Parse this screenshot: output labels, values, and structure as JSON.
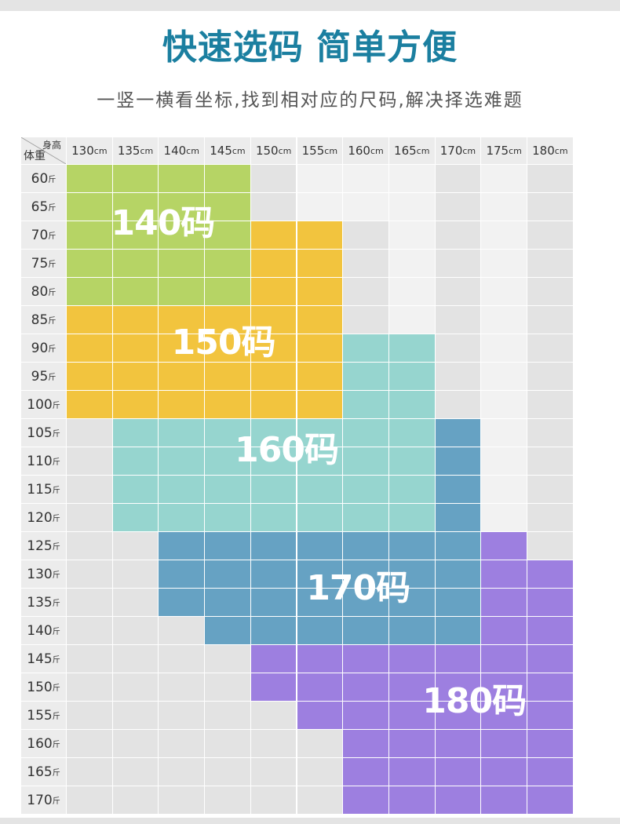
{
  "header": {
    "title": "快速选码 简单方便",
    "subtitle": "一竖一横看坐标,找到相对应的尺码,解决择选难题"
  },
  "chart_data": {
    "type": "table",
    "corner": {
      "height_label": "身高",
      "weight_label": "体重"
    },
    "height_unit": "cm",
    "weight_unit": "斤",
    "heights": [
      "130",
      "135",
      "140",
      "145",
      "150",
      "155",
      "160",
      "165",
      "170",
      "175",
      "180"
    ],
    "weights": [
      "60",
      "65",
      "70",
      "75",
      "80",
      "85",
      "90",
      "95",
      "100",
      "105",
      "110",
      "115",
      "120",
      "125",
      "130",
      "135",
      "140",
      "145",
      "150",
      "155",
      "160",
      "165",
      "170"
    ],
    "sizes": [
      {
        "label": "140码",
        "color": "#b6d465"
      },
      {
        "label": "150码",
        "color": "#f2c43e"
      },
      {
        "label": "160码",
        "color": "#96d5cf"
      },
      {
        "label": "170码",
        "color": "#66a2c3"
      },
      {
        "label": "180码",
        "color": "#9d7fe0"
      }
    ],
    "empty_colors": {
      "dark": "#e3e3e3",
      "light": "#f2f2f2"
    },
    "grid": [
      [
        0,
        0,
        0,
        0,
        "L",
        "W",
        "W",
        "W",
        "L",
        "W",
        "L"
      ],
      [
        0,
        0,
        0,
        0,
        "L",
        "W",
        "W",
        "W",
        "L",
        "W",
        "L"
      ],
      [
        0,
        0,
        0,
        0,
        1,
        1,
        "L",
        "W",
        "L",
        "W",
        "L"
      ],
      [
        0,
        0,
        0,
        0,
        1,
        1,
        "L",
        "W",
        "L",
        "W",
        "L"
      ],
      [
        0,
        0,
        0,
        0,
        1,
        1,
        "L",
        "W",
        "L",
        "W",
        "L"
      ],
      [
        1,
        1,
        1,
        1,
        1,
        1,
        "L",
        "W",
        "L",
        "W",
        "L"
      ],
      [
        1,
        1,
        1,
        1,
        1,
        1,
        2,
        2,
        "L",
        "W",
        "L"
      ],
      [
        1,
        1,
        1,
        1,
        1,
        1,
        2,
        2,
        "L",
        "W",
        "L"
      ],
      [
        1,
        1,
        1,
        1,
        1,
        1,
        2,
        2,
        "L",
        "W",
        "L"
      ],
      [
        "L",
        2,
        2,
        2,
        2,
        2,
        2,
        2,
        3,
        "W",
        "L"
      ],
      [
        "L",
        2,
        2,
        2,
        2,
        2,
        2,
        2,
        3,
        "W",
        "L"
      ],
      [
        "L",
        2,
        2,
        2,
        2,
        2,
        2,
        2,
        3,
        "W",
        "L"
      ],
      [
        "L",
        2,
        2,
        2,
        2,
        2,
        2,
        2,
        3,
        "W",
        "L"
      ],
      [
        "L",
        "L",
        3,
        3,
        3,
        3,
        3,
        3,
        3,
        4,
        "L"
      ],
      [
        "L",
        "L",
        3,
        3,
        3,
        3,
        3,
        3,
        3,
        4,
        4
      ],
      [
        "L",
        "L",
        3,
        3,
        3,
        3,
        3,
        3,
        3,
        4,
        4
      ],
      [
        "L",
        "L",
        "L",
        3,
        3,
        3,
        3,
        3,
        3,
        4,
        4
      ],
      [
        "L",
        "L",
        "L",
        "L",
        4,
        4,
        4,
        4,
        4,
        4,
        4
      ],
      [
        "L",
        "L",
        "L",
        "L",
        4,
        4,
        4,
        4,
        4,
        4,
        4
      ],
      [
        "L",
        "L",
        "L",
        "L",
        "L",
        4,
        4,
        4,
        4,
        4,
        4
      ],
      [
        "L",
        "L",
        "L",
        "L",
        "L",
        "L",
        4,
        4,
        4,
        4,
        4
      ],
      [
        "L",
        "L",
        "L",
        "L",
        "L",
        "L",
        4,
        4,
        4,
        4,
        4
      ],
      [
        "L",
        "L",
        "L",
        "L",
        "L",
        "L",
        4,
        4,
        4,
        4,
        4
      ]
    ]
  }
}
